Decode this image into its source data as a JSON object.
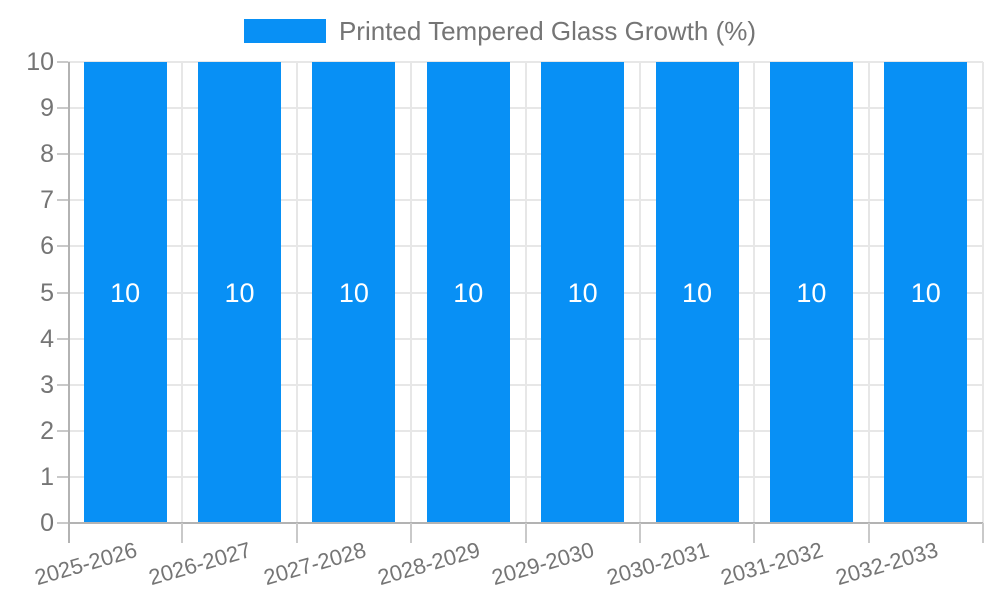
{
  "legend": {
    "series_label": "Printed Tempered Glass Growth (%)"
  },
  "colors": {
    "bar": "#0890f5",
    "bar_label": "#ffffff",
    "axis_text": "#757575",
    "gridline": "#e7e7e7",
    "axis_line": "#b3b3b3",
    "tick": "#c9c9c9",
    "background": "#ffffff"
  },
  "chart_data": {
    "type": "bar",
    "title": "Printed Tempered Glass Growth (%)",
    "categories": [
      "2025-2026",
      "2026-2027",
      "2027-2028",
      "2028-2029",
      "2029-2030",
      "2030-2031",
      "2031-2032",
      "2032-2033"
    ],
    "series": [
      {
        "name": "Printed Tempered Glass Growth (%)",
        "values": [
          10,
          10,
          10,
          10,
          10,
          10,
          10,
          10
        ]
      }
    ],
    "bar_value_labels": [
      "10",
      "10",
      "10",
      "10",
      "10",
      "10",
      "10",
      "10"
    ],
    "xlabel": "",
    "ylabel": "",
    "ylim": [
      0,
      10
    ],
    "yticks": [
      0,
      1,
      2,
      3,
      4,
      5,
      6,
      7,
      8,
      9,
      10
    ],
    "grid": true,
    "legend_position": "top",
    "x_label_rotation_deg": -16
  }
}
